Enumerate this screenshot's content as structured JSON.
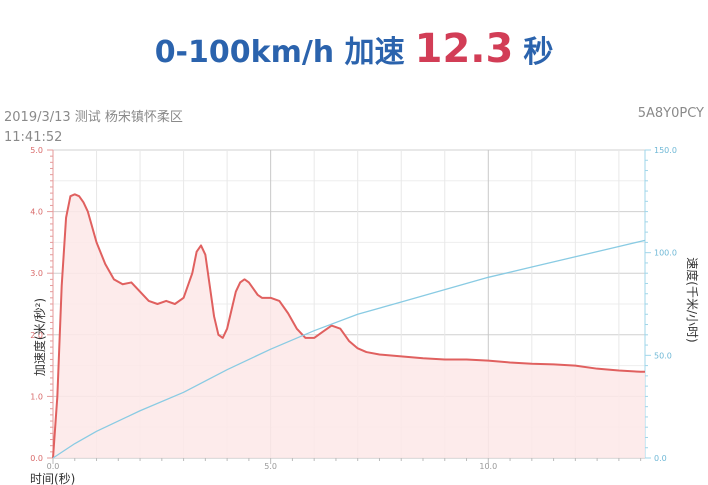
{
  "header": {
    "title_prefix": "0-100km/h 加速",
    "result_value": "12.3",
    "result_unit": "秒"
  },
  "meta": {
    "date_location": "2019/3/13 测试 杨宋镇怀柔区",
    "time": "11:41:52",
    "code": "5A8Y0PCY"
  },
  "colors": {
    "accel": "#e0605f",
    "accel_fill": "#fde8e8",
    "speed": "#89cbe3",
    "title_blue": "#2b63ad",
    "value_red": "#d23d56"
  },
  "chart_data": {
    "type": "line",
    "xlabel": "时间(秒)",
    "ylabel": "加速度(米/秒²)",
    "y2label": "速度(千米/小时)",
    "xlim": [
      0,
      13.6
    ],
    "ylim": [
      0,
      5.0
    ],
    "y2lim": [
      0,
      150
    ],
    "x_ticks": [
      "0.0",
      "5.0",
      "10.0"
    ],
    "y_ticks": [
      "0.0",
      "1.0",
      "2.0",
      "3.0",
      "4.0",
      "5.0"
    ],
    "y2_ticks": [
      "0.0",
      "50.0",
      "100.0",
      "150.0"
    ],
    "grid": true,
    "series": [
      {
        "name": "加速度",
        "axis": "left",
        "x": [
          0.0,
          0.1,
          0.2,
          0.3,
          0.4,
          0.5,
          0.6,
          0.7,
          0.8,
          0.9,
          1.0,
          1.2,
          1.4,
          1.6,
          1.8,
          2.0,
          2.2,
          2.4,
          2.6,
          2.8,
          3.0,
          3.2,
          3.3,
          3.4,
          3.5,
          3.6,
          3.7,
          3.8,
          3.9,
          4.0,
          4.1,
          4.2,
          4.3,
          4.4,
          4.5,
          4.6,
          4.7,
          4.8,
          5.0,
          5.2,
          5.4,
          5.6,
          5.8,
          6.0,
          6.2,
          6.4,
          6.6,
          6.8,
          7.0,
          7.2,
          7.5,
          8.0,
          8.5,
          9.0,
          9.5,
          10.0,
          10.5,
          11.0,
          11.5,
          12.0,
          12.5,
          13.0,
          13.5,
          13.6
        ],
        "y": [
          0.0,
          1.0,
          2.8,
          3.9,
          4.25,
          4.28,
          4.25,
          4.15,
          4.0,
          3.75,
          3.5,
          3.15,
          2.9,
          2.82,
          2.85,
          2.7,
          2.55,
          2.5,
          2.55,
          2.5,
          2.6,
          3.0,
          3.35,
          3.45,
          3.3,
          2.8,
          2.3,
          2.0,
          1.95,
          2.1,
          2.4,
          2.7,
          2.85,
          2.9,
          2.85,
          2.75,
          2.65,
          2.6,
          2.6,
          2.55,
          2.35,
          2.1,
          1.95,
          1.95,
          2.05,
          2.15,
          2.1,
          1.9,
          1.78,
          1.72,
          1.68,
          1.65,
          1.62,
          1.6,
          1.6,
          1.58,
          1.55,
          1.53,
          1.52,
          1.5,
          1.45,
          1.42,
          1.4,
          1.4
        ]
      },
      {
        "name": "速度",
        "axis": "right",
        "x": [
          0.0,
          0.5,
          1.0,
          2.0,
          3.0,
          4.0,
          5.0,
          6.0,
          7.0,
          8.0,
          9.0,
          10.0,
          11.0,
          12.0,
          13.0,
          13.6
        ],
        "y": [
          0.0,
          7.0,
          13.0,
          23.0,
          32.0,
          43.0,
          53.0,
          62.0,
          70.0,
          76.0,
          82.0,
          88.0,
          93.0,
          98.0,
          103.0,
          106.0
        ]
      }
    ]
  }
}
